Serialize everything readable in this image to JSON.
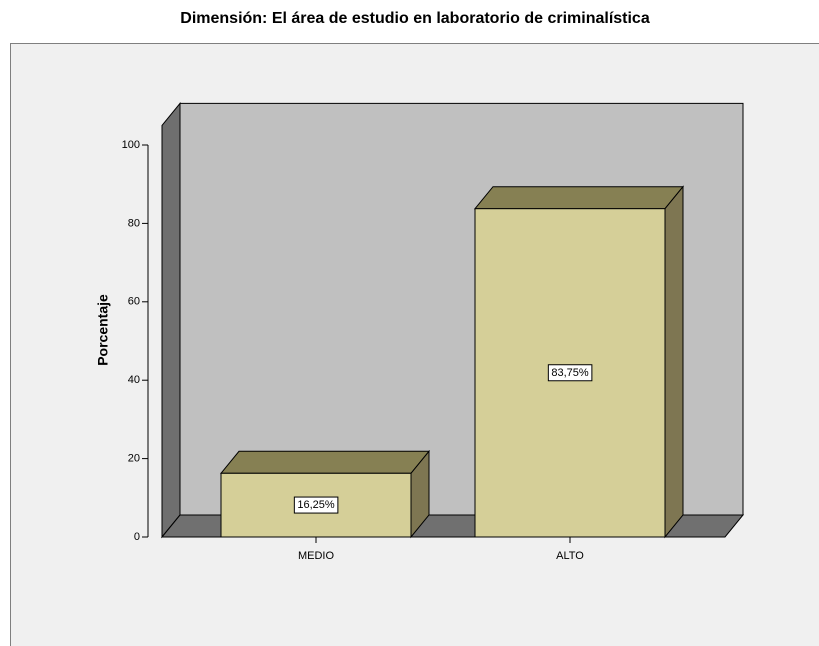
{
  "chart_data": {
    "type": "bar3d",
    "title": "Dimensión: El área de estudio en laboratorio de criminalística",
    "y_label": "Porcentaje",
    "categories": [
      "MEDIO",
      "ALTO"
    ],
    "values": [
      16.25,
      83.75
    ],
    "value_labels": [
      "16,25%",
      "83,75%"
    ],
    "color": "#d5cf98",
    "ylim": [
      0,
      105
    ],
    "yticks": [
      0,
      20,
      40,
      60,
      80,
      100
    ]
  }
}
